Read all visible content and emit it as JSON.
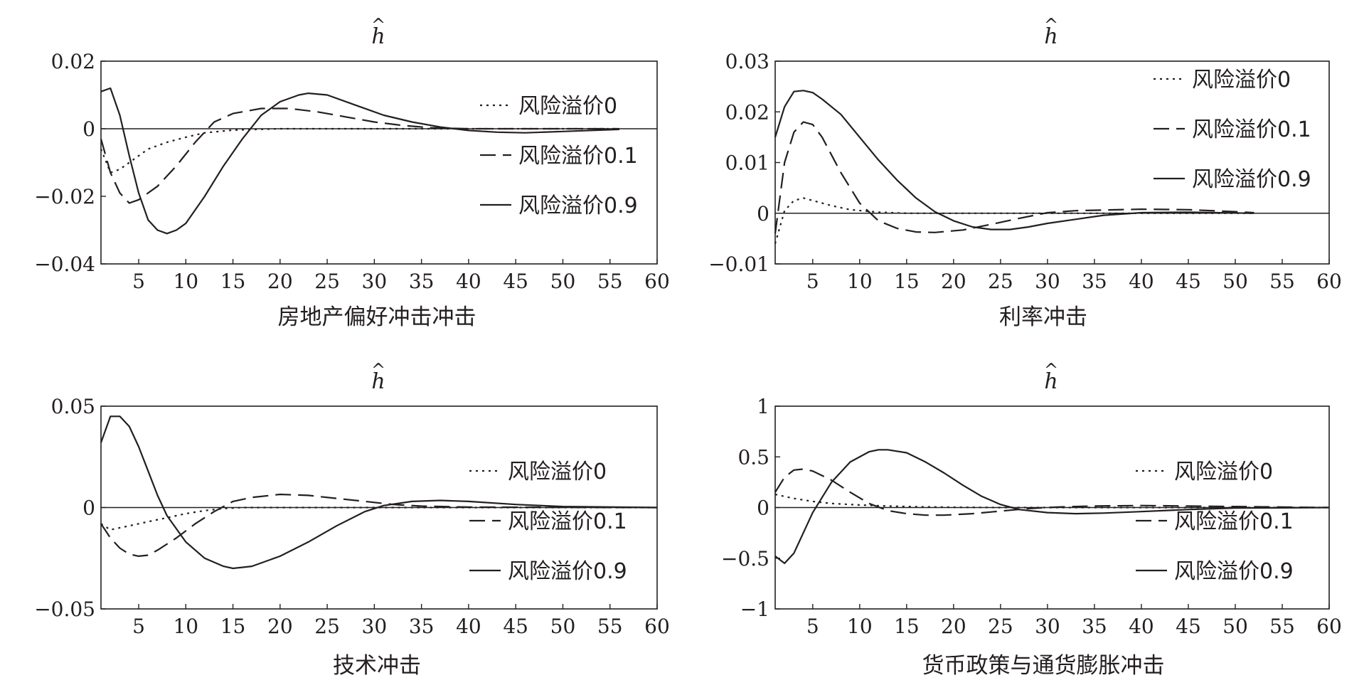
{
  "chart_data": [
    {
      "type": "line",
      "title": "h",
      "caption": "房地产偏好冲击冲击",
      "xlim": [
        1,
        60
      ],
      "ylim": [
        -0.04,
        0.02
      ],
      "x_ticks": [
        5,
        10,
        15,
        20,
        25,
        30,
        35,
        40,
        45,
        50,
        55,
        60
      ],
      "y_ticks": [
        -0.04,
        -0.02,
        0,
        0.02
      ],
      "y_tick_labels": [
        "−0.04",
        "−0.02",
        "0",
        "0.02"
      ],
      "legend": "right-center",
      "series": [
        {
          "name": "风险溢价0",
          "style": "dotted",
          "points": [
            [
              1,
              -0.006
            ],
            [
              2,
              -0.013
            ],
            [
              3,
              -0.012
            ],
            [
              4,
              -0.01
            ],
            [
              6,
              -0.006
            ],
            [
              8,
              -0.004
            ],
            [
              10,
              -0.0025
            ],
            [
              12,
              -0.0012
            ],
            [
              15,
              -0.0004
            ],
            [
              20,
              0
            ],
            [
              56,
              0
            ]
          ]
        },
        {
          "name": "风险溢价0.1",
          "style": "dashed",
          "points": [
            [
              1,
              -0.003
            ],
            [
              2,
              -0.013
            ],
            [
              3,
              -0.019
            ],
            [
              4,
              -0.022
            ],
            [
              5,
              -0.021
            ],
            [
              7,
              -0.017
            ],
            [
              9,
              -0.011
            ],
            [
              11,
              -0.004
            ],
            [
              13,
              0.002
            ],
            [
              15,
              0.0045
            ],
            [
              18,
              0.006
            ],
            [
              21,
              0.006
            ],
            [
              24,
              0.005
            ],
            [
              27,
              0.0035
            ],
            [
              30,
              0.002
            ],
            [
              33,
              0.001
            ],
            [
              36,
              0.0003
            ],
            [
              40,
              0
            ],
            [
              56,
              0
            ]
          ]
        },
        {
          "name": "风险溢价0.9",
          "style": "solid",
          "points": [
            [
              1,
              0.011
            ],
            [
              2,
              0.012
            ],
            [
              3,
              0.004
            ],
            [
              4,
              -0.008
            ],
            [
              5,
              -0.019
            ],
            [
              6,
              -0.027
            ],
            [
              7,
              -0.03
            ],
            [
              8,
              -0.031
            ],
            [
              9,
              -0.03
            ],
            [
              10,
              -0.028
            ],
            [
              12,
              -0.02
            ],
            [
              14,
              -0.011
            ],
            [
              16,
              -0.003
            ],
            [
              18,
              0.004
            ],
            [
              20,
              0.008
            ],
            [
              22,
              0.01
            ],
            [
              23,
              0.0105
            ],
            [
              25,
              0.01
            ],
            [
              28,
              0.007
            ],
            [
              31,
              0.004
            ],
            [
              34,
              0.002
            ],
            [
              37,
              0.0005
            ],
            [
              40,
              -0.0005
            ],
            [
              43,
              -0.001
            ],
            [
              46,
              -0.0012
            ],
            [
              50,
              -0.0008
            ],
            [
              56,
              -0.0002
            ]
          ]
        }
      ]
    },
    {
      "type": "line",
      "title": "h",
      "caption": "利率冲击",
      "xlim": [
        1,
        60
      ],
      "ylim": [
        -0.01,
        0.03
      ],
      "x_ticks": [
        5,
        10,
        15,
        20,
        25,
        30,
        35,
        40,
        45,
        50,
        55,
        60
      ],
      "y_ticks": [
        -0.01,
        0,
        0.01,
        0.02,
        0.03
      ],
      "y_tick_labels": [
        "−0.01",
        "0",
        "0.01",
        "0.02",
        "0.03"
      ],
      "legend": "top-right",
      "series": [
        {
          "name": "风险溢价0",
          "style": "dotted",
          "points": [
            [
              1,
              -0.006
            ],
            [
              2,
              0.0005
            ],
            [
              3,
              0.0025
            ],
            [
              4,
              0.003
            ],
            [
              5,
              0.0025
            ],
            [
              7,
              0.0015
            ],
            [
              9,
              0.0007
            ],
            [
              12,
              0.0002
            ],
            [
              15,
              0
            ],
            [
              52,
              0
            ]
          ]
        },
        {
          "name": "风险溢价0.1",
          "style": "dashed",
          "points": [
            [
              1,
              -0.004
            ],
            [
              2,
              0.01
            ],
            [
              3,
              0.016
            ],
            [
              4,
              0.018
            ],
            [
              5,
              0.0175
            ],
            [
              6,
              0.015
            ],
            [
              7,
              0.0115
            ],
            [
              8,
              0.008
            ],
            [
              10,
              0.002
            ],
            [
              12,
              -0.0015
            ],
            [
              14,
              -0.003
            ],
            [
              16,
              -0.0037
            ],
            [
              18,
              -0.0038
            ],
            [
              21,
              -0.0033
            ],
            [
              24,
              -0.0022
            ],
            [
              27,
              -0.001
            ],
            [
              30,
              0.0001
            ],
            [
              33,
              0.0005
            ],
            [
              40,
              0.0008
            ],
            [
              45,
              0.0007
            ],
            [
              50,
              0.0003
            ],
            [
              52,
              0.0001
            ]
          ]
        },
        {
          "name": "风险溢价0.9",
          "style": "solid",
          "points": [
            [
              1,
              0.015
            ],
            [
              2,
              0.021
            ],
            [
              3,
              0.024
            ],
            [
              4,
              0.0242
            ],
            [
              5,
              0.0238
            ],
            [
              6,
              0.0225
            ],
            [
              8,
              0.0195
            ],
            [
              10,
              0.015
            ],
            [
              12,
              0.0105
            ],
            [
              14,
              0.0065
            ],
            [
              16,
              0.003
            ],
            [
              18,
              0.0003
            ],
            [
              20,
              -0.0015
            ],
            [
              22,
              -0.0027
            ],
            [
              24,
              -0.0032
            ],
            [
              26,
              -0.0032
            ],
            [
              28,
              -0.0027
            ],
            [
              30,
              -0.002
            ],
            [
              33,
              -0.0012
            ],
            [
              36,
              -0.0004
            ],
            [
              40,
              0.0001
            ],
            [
              45,
              0.0002
            ],
            [
              52,
              0
            ]
          ]
        }
      ]
    },
    {
      "type": "line",
      "title": "h",
      "caption": "技术冲击",
      "xlim": [
        1,
        60
      ],
      "ylim": [
        -0.05,
        0.05
      ],
      "x_ticks": [
        5,
        10,
        15,
        20,
        25,
        30,
        35,
        40,
        45,
        50,
        55,
        60
      ],
      "y_ticks": [
        -0.05,
        0,
        0.05
      ],
      "y_tick_labels": [
        "−0.05",
        "0",
        "0.05"
      ],
      "legend": "right-center",
      "series": [
        {
          "name": "风险溢价0",
          "style": "dotted",
          "points": [
            [
              1,
              -0.008
            ],
            [
              2,
              -0.011
            ],
            [
              4,
              -0.009
            ],
            [
              6,
              -0.007
            ],
            [
              8,
              -0.005
            ],
            [
              10,
              -0.003
            ],
            [
              12,
              -0.0015
            ],
            [
              14,
              -0.0005
            ],
            [
              16,
              0
            ],
            [
              60,
              0
            ]
          ]
        },
        {
          "name": "风险溢价0.1",
          "style": "dashed",
          "points": [
            [
              1,
              -0.008
            ],
            [
              2,
              -0.015
            ],
            [
              3,
              -0.02
            ],
            [
              4,
              -0.023
            ],
            [
              5,
              -0.024
            ],
            [
              6,
              -0.0235
            ],
            [
              7,
              -0.021
            ],
            [
              9,
              -0.015
            ],
            [
              11,
              -0.008
            ],
            [
              13,
              -0.002
            ],
            [
              15,
              0.003
            ],
            [
              17,
              0.005
            ],
            [
              20,
              0.0065
            ],
            [
              23,
              0.006
            ],
            [
              26,
              0.0045
            ],
            [
              29,
              0.003
            ],
            [
              32,
              0.0015
            ],
            [
              35,
              0.0007
            ],
            [
              40,
              0.0002
            ],
            [
              60,
              0
            ]
          ]
        },
        {
          "name": "风险溢价0.9",
          "style": "solid",
          "points": [
            [
              1,
              0.032
            ],
            [
              2,
              0.045
            ],
            [
              3,
              0.045
            ],
            [
              4,
              0.04
            ],
            [
              5,
              0.03
            ],
            [
              6,
              0.018
            ],
            [
              7,
              0.006
            ],
            [
              8,
              -0.004
            ],
            [
              10,
              -0.017
            ],
            [
              12,
              -0.025
            ],
            [
              14,
              -0.029
            ],
            [
              15,
              -0.03
            ],
            [
              17,
              -0.029
            ],
            [
              20,
              -0.024
            ],
            [
              23,
              -0.017
            ],
            [
              26,
              -0.009
            ],
            [
              29,
              -0.002
            ],
            [
              31,
              0.001
            ],
            [
              34,
              0.003
            ],
            [
              37,
              0.0035
            ],
            [
              40,
              0.003
            ],
            [
              45,
              0.0015
            ],
            [
              50,
              0.0005
            ],
            [
              60,
              0
            ]
          ]
        }
      ]
    },
    {
      "type": "line",
      "title": "h",
      "caption": "货币政策与通货膨胀冲击",
      "xlim": [
        1,
        60
      ],
      "ylim": [
        -1,
        1
      ],
      "x_ticks": [
        5,
        10,
        15,
        20,
        25,
        30,
        35,
        40,
        45,
        50,
        55,
        60
      ],
      "y_ticks": [
        -1,
        -0.5,
        0,
        0.5,
        1
      ],
      "y_tick_labels": [
        "−1",
        "−0.5",
        "0",
        "0.5",
        "1"
      ],
      "legend": "right-center",
      "series": [
        {
          "name": "风险溢价0",
          "style": "dotted",
          "points": [
            [
              1,
              0.13
            ],
            [
              3,
              0.09
            ],
            [
              5,
              0.06
            ],
            [
              7,
              0.04
            ],
            [
              10,
              0.025
            ],
            [
              13,
              0.015
            ],
            [
              16,
              0.008
            ],
            [
              20,
              0.003
            ],
            [
              25,
              0
            ],
            [
              60,
              0
            ]
          ]
        },
        {
          "name": "风险溢价0.1",
          "style": "dashed",
          "points": [
            [
              1,
              0.15
            ],
            [
              2,
              0.3
            ],
            [
              3,
              0.37
            ],
            [
              4,
              0.38
            ],
            [
              5,
              0.36
            ],
            [
              7,
              0.27
            ],
            [
              9,
              0.15
            ],
            [
              11,
              0.04
            ],
            [
              13,
              -0.03
            ],
            [
              15,
              -0.06
            ],
            [
              17,
              -0.075
            ],
            [
              19,
              -0.075
            ],
            [
              22,
              -0.06
            ],
            [
              25,
              -0.035
            ],
            [
              28,
              -0.01
            ],
            [
              31,
              0.005
            ],
            [
              35,
              0.015
            ],
            [
              40,
              0.02
            ],
            [
              50,
              0.01
            ],
            [
              60,
              0
            ]
          ]
        },
        {
          "name": "风险溢价0.9",
          "style": "solid",
          "points": [
            [
              1,
              -0.48
            ],
            [
              2,
              -0.55
            ],
            [
              3,
              -0.45
            ],
            [
              4,
              -0.25
            ],
            [
              5,
              -0.05
            ],
            [
              7,
              0.25
            ],
            [
              9,
              0.45
            ],
            [
              11,
              0.55
            ],
            [
              12,
              0.57
            ],
            [
              13,
              0.57
            ],
            [
              15,
              0.54
            ],
            [
              17,
              0.45
            ],
            [
              19,
              0.34
            ],
            [
              21,
              0.22
            ],
            [
              23,
              0.11
            ],
            [
              25,
              0.03
            ],
            [
              27,
              -0.02
            ],
            [
              30,
              -0.05
            ],
            [
              33,
              -0.06
            ],
            [
              36,
              -0.055
            ],
            [
              40,
              -0.04
            ],
            [
              45,
              -0.02
            ],
            [
              50,
              -0.005
            ],
            [
              60,
              0
            ]
          ]
        }
      ]
    }
  ]
}
